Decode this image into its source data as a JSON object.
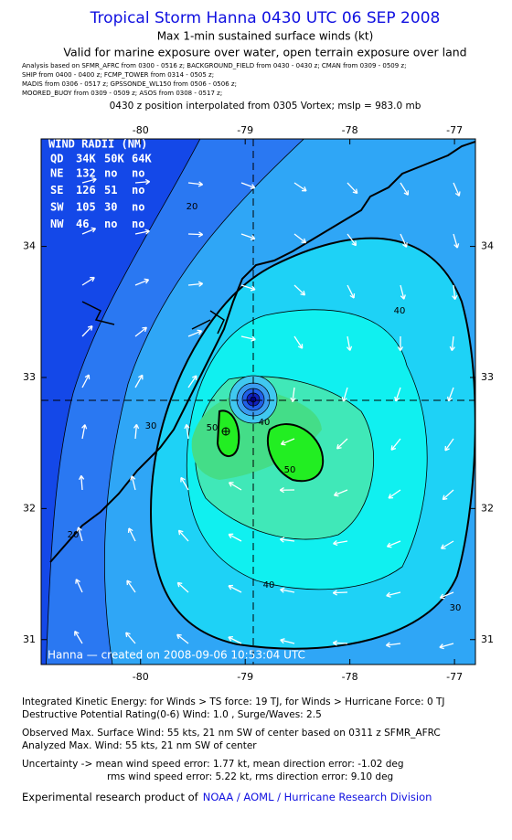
{
  "header": {
    "title": "Tropical Storm Hanna 0430 UTC 06 SEP 2008",
    "subtitle": "Max 1-min sustained surface winds (kt)",
    "validity": "Valid for marine exposure over water, open terrain exposure over land",
    "sources": [
      "Analysis based on  SFMR_AFRC from 0300 - 0516 z;  BACKGROUND_FIELD from 0430 - 0430 z;  CMAN from 0309 - 0509 z;",
      "SHIP from 0400 - 0400 z;  FCMP_TOWER from 0314 - 0505 z;",
      "MADIS from 0306 - 0517 z;  GPSSONDE_WL150 from 0506 - 0506 z;",
      "MOORED_BUOY from 0309 - 0509 z;  ASOS from 0308 - 0517 z;"
    ],
    "position": "0430 z position interpolated from 0305 Vortex; mslp = 983.0 mb"
  },
  "map": {
    "xlim": [
      -80.95,
      -76.8
    ],
    "ylim": [
      30.81,
      34.82
    ],
    "xticks": [
      -80,
      -79,
      -78,
      -77
    ],
    "yticks": [
      31,
      32,
      33,
      34
    ],
    "wind_radii": {
      "title": "WIND RADII (NM)",
      "columns": [
        "QD",
        "34K",
        "50K",
        "64K"
      ],
      "rows": [
        [
          "NE",
          132,
          "no",
          "no"
        ],
        [
          "SE",
          126,
          51,
          "no"
        ],
        [
          "SW",
          105,
          30,
          "no"
        ],
        [
          "NW",
          46,
          "no",
          "no"
        ]
      ]
    },
    "contour_labels": [
      20,
      20,
      30,
      30,
      40,
      40,
      40,
      50,
      50
    ],
    "credit": "Hanna — created on 2008-09-06 10:53:04 UTC"
  },
  "footer": {
    "lines": [
      "Integrated Kinetic Energy:  for Winds > TS force: 19 TJ,  for Winds > Hurricane Force: 0 TJ",
      "Destructive Potential Rating(0-6)   Wind: 1.0 , Surge/Waves: 2.5",
      "Observed Max. Surface Wind: 55 kts, 21 nm SW of center based on 0311 z SFMR_AFRC",
      "Analyzed Max. Wind: 55 kts, 21 nm SW of center",
      "Uncertainty -> mean wind speed error: 1.77 kt,   mean direction error:  -1.02 deg",
      "rms wind speed error: 5.22 kt,   rms direction error: 9.10 deg"
    ],
    "product": "Experimental research product of",
    "link": "NOAA / AOML / Hurricane Research Division"
  }
}
